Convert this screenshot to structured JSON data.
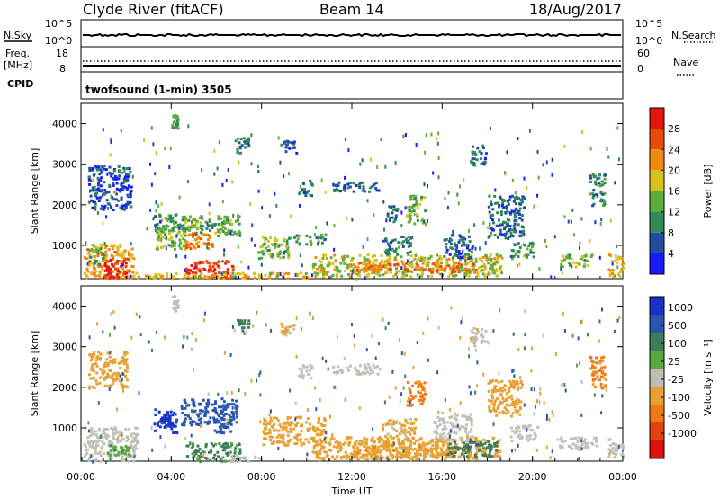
{
  "header": {
    "station": "Clyde River (fitACF)",
    "beam": "Beam 14",
    "date": "18/Aug/2017"
  },
  "top_panels": {
    "nsky_label": "N.Sky",
    "nsky_ticks": [
      "10^5",
      "10^0"
    ],
    "nsearch_label": "N.Search",
    "nsearch_ticks": [
      "10^5",
      "10^0"
    ],
    "freq_label": "Freq.",
    "freq_unit": "[MHz]",
    "freq_ticks": [
      "18",
      "8"
    ],
    "nave_label": "Nave",
    "nave_ticks": [
      "60",
      "0"
    ],
    "cpid_label": "CPID",
    "cpid_value": "twofsound (1-min) 3505"
  },
  "colors": {
    "power": [
      "#1a1aff",
      "#1f4fa0",
      "#2f8a55",
      "#5fae3c",
      "#d8c21a",
      "#ef8b10",
      "#e84a0c",
      "#e8150e"
    ],
    "velocity": [
      "#1834c8",
      "#2a56b0",
      "#3d7e58",
      "#5aa840",
      "#bdbdb5",
      "#e8a030",
      "#ef7a12",
      "#e04210",
      "#e01010"
    ],
    "ground_scatter": "#c0c0b8"
  },
  "chart_data": [
    {
      "type": "heatmap",
      "title": "Power",
      "xlabel": "",
      "ylabel": "Slant Range [km]",
      "x_ticks": [
        "00:00",
        "04:00",
        "08:00",
        "12:00",
        "16:00",
        "20:00",
        "00:00"
      ],
      "xlim_hours": [
        0,
        24
      ],
      "y_ticks": [
        "1000",
        "2000",
        "3000",
        "4000"
      ],
      "ylim_km": [
        180,
        4500
      ],
      "colorbar_label": "Power [dB]",
      "colorbar_ticks": [
        "4",
        "8",
        "12",
        "16",
        "20",
        "24",
        "28"
      ],
      "colorbar_range": [
        0,
        30
      ],
      "regions": [
        {
          "t0": 0.1,
          "t1": 2.3,
          "r0": 200,
          "r1": 1050,
          "v": 20
        },
        {
          "t0": 1.0,
          "t1": 2.0,
          "r0": 200,
          "r1": 700,
          "v": 28
        },
        {
          "t0": 0.3,
          "t1": 1.0,
          "r0": 500,
          "r1": 950,
          "v": 13
        },
        {
          "t0": 3.2,
          "t1": 4.6,
          "r0": 1350,
          "r1": 1800,
          "v": 10
        },
        {
          "t0": 3.3,
          "t1": 4.6,
          "r0": 900,
          "r1": 1500,
          "v": 14
        },
        {
          "t0": 4.4,
          "t1": 7.0,
          "r0": 1250,
          "r1": 1750,
          "v": 12
        },
        {
          "t0": 4.6,
          "t1": 5.8,
          "r0": 950,
          "r1": 1350,
          "v": 22
        },
        {
          "t0": 4.6,
          "t1": 6.8,
          "r0": 200,
          "r1": 650,
          "v": 26
        },
        {
          "t0": 2.3,
          "t1": 10.0,
          "r0": 200,
          "r1": 350,
          "v": 18
        },
        {
          "t0": 7.8,
          "t1": 9.2,
          "r0": 700,
          "r1": 1250,
          "v": 14
        },
        {
          "t0": 9.4,
          "t1": 10.8,
          "r0": 1050,
          "r1": 1300,
          "v": 10
        },
        {
          "t0": 9.6,
          "t1": 10.2,
          "r0": 2250,
          "r1": 2650,
          "v": 6
        },
        {
          "t0": 11.1,
          "t1": 13.2,
          "r0": 2350,
          "r1": 2600,
          "v": 6
        },
        {
          "t0": 10.2,
          "t1": 18.6,
          "r0": 250,
          "r1": 800,
          "v": 16
        },
        {
          "t0": 12.0,
          "t1": 17.5,
          "r0": 350,
          "r1": 600,
          "v": 22
        },
        {
          "t0": 13.3,
          "t1": 14.6,
          "r0": 800,
          "r1": 1250,
          "v": 9
        },
        {
          "t0": 14.4,
          "t1": 15.2,
          "r0": 1550,
          "r1": 2250,
          "v": 13
        },
        {
          "t0": 13.5,
          "t1": 14.0,
          "r0": 1600,
          "r1": 2000,
          "v": 8
        },
        {
          "t0": 16.0,
          "t1": 17.3,
          "r0": 700,
          "r1": 1300,
          "v": 7
        },
        {
          "t0": 18.0,
          "t1": 19.6,
          "r0": 1200,
          "r1": 2250,
          "v": 7
        },
        {
          "t0": 19.0,
          "t1": 20.0,
          "r0": 700,
          "r1": 1100,
          "v": 10
        },
        {
          "t0": 21.2,
          "t1": 22.6,
          "r0": 500,
          "r1": 800,
          "v": 14
        },
        {
          "t0": 22.5,
          "t1": 23.2,
          "r0": 2000,
          "r1": 2800,
          "v": 9
        },
        {
          "t0": 23.3,
          "t1": 24.0,
          "r0": 250,
          "r1": 800,
          "v": 18
        },
        {
          "t0": 6.8,
          "t1": 7.4,
          "r0": 3300,
          "r1": 3700,
          "v": 8
        },
        {
          "t0": 8.8,
          "t1": 9.5,
          "r0": 3300,
          "r1": 3600,
          "v": 6
        },
        {
          "t0": 0.3,
          "t1": 2.2,
          "r0": 1900,
          "r1": 3000,
          "v": 5
        },
        {
          "t0": 4.0,
          "t1": 4.3,
          "r0": 3900,
          "r1": 4300,
          "v": 12
        },
        {
          "t0": 17.2,
          "t1": 17.9,
          "r0": 3000,
          "r1": 3500,
          "v": 7
        }
      ]
    },
    {
      "type": "heatmap",
      "title": "Velocity",
      "xlabel": "Time UT",
      "ylabel": "Slant Range [km]",
      "x_ticks": [
        "00:00",
        "04:00",
        "08:00",
        "12:00",
        "16:00",
        "20:00",
        "00:00"
      ],
      "xlim_hours": [
        0,
        24
      ],
      "y_ticks": [
        "1000",
        "2000",
        "3000",
        "4000"
      ],
      "ylim_km": [
        180,
        4500
      ],
      "colorbar_label": "Velocity [m s⁻¹]",
      "colorbar_ticks": [
        "1000",
        "500",
        "100",
        "25",
        "-25",
        "-100",
        "-500",
        "-1000"
      ],
      "colorbar_range": [
        -1000,
        1000
      ],
      "regions": [
        {
          "t0": 0.1,
          "t1": 2.5,
          "r0": 200,
          "r1": 1050,
          "v": 0,
          "g": true
        },
        {
          "t0": 1.0,
          "t1": 2.2,
          "r0": 300,
          "r1": 600,
          "v": 20
        },
        {
          "t0": 3.2,
          "t1": 4.2,
          "r0": 900,
          "r1": 1500,
          "v": 600
        },
        {
          "t0": 3.5,
          "t1": 4.0,
          "r0": 1050,
          "r1": 1350,
          "v": 1000
        },
        {
          "t0": 4.4,
          "t1": 6.9,
          "r0": 1100,
          "r1": 1750,
          "v": 150
        },
        {
          "t0": 5.8,
          "t1": 6.6,
          "r0": 900,
          "r1": 1300,
          "v": 400
        },
        {
          "t0": 4.6,
          "t1": 7.0,
          "r0": 200,
          "r1": 650,
          "v": 30
        },
        {
          "t0": 6.5,
          "t1": 8.0,
          "r0": 200,
          "r1": 350,
          "v": 0,
          "g": true
        },
        {
          "t0": 8.0,
          "t1": 10.8,
          "r0": 600,
          "r1": 1300,
          "v": -200
        },
        {
          "t0": 9.6,
          "t1": 10.2,
          "r0": 2250,
          "r1": 2600,
          "v": 0,
          "g": true
        },
        {
          "t0": 11.1,
          "t1": 13.2,
          "r0": 2350,
          "r1": 2600,
          "v": 0,
          "g": true
        },
        {
          "t0": 10.2,
          "t1": 18.6,
          "r0": 250,
          "r1": 800,
          "v": -150
        },
        {
          "t0": 12.0,
          "t1": 16.5,
          "r0": 300,
          "r1": 650,
          "v": -400
        },
        {
          "t0": 14.4,
          "t1": 15.2,
          "r0": 1550,
          "r1": 2200,
          "v": -600
        },
        {
          "t0": 13.3,
          "t1": 14.8,
          "r0": 800,
          "r1": 1250,
          "v": -120
        },
        {
          "t0": 15.6,
          "t1": 17.3,
          "r0": 700,
          "r1": 1400,
          "v": 0,
          "g": true
        },
        {
          "t0": 16.2,
          "t1": 18.5,
          "r0": 300,
          "r1": 700,
          "v": 80
        },
        {
          "t0": 18.0,
          "t1": 19.5,
          "r0": 1300,
          "r1": 2200,
          "v": -300
        },
        {
          "t0": 19.0,
          "t1": 20.2,
          "r0": 700,
          "r1": 1100,
          "v": 0,
          "g": true
        },
        {
          "t0": 21.0,
          "t1": 22.8,
          "r0": 500,
          "r1": 800,
          "v": 0,
          "g": true
        },
        {
          "t0": 22.5,
          "t1": 23.2,
          "r0": 2000,
          "r1": 2800,
          "v": -600
        },
        {
          "t0": 23.3,
          "t1": 24.0,
          "r0": 250,
          "r1": 800,
          "v": 0,
          "g": true
        },
        {
          "t0": 6.8,
          "t1": 7.4,
          "r0": 3300,
          "r1": 3700,
          "v": 60
        },
        {
          "t0": 8.8,
          "t1": 9.4,
          "r0": 3300,
          "r1": 3600,
          "v": -120
        },
        {
          "t0": 0.3,
          "t1": 2.0,
          "r0": 2000,
          "r1": 2900,
          "v": -200
        },
        {
          "t0": 4.0,
          "t1": 4.3,
          "r0": 3900,
          "r1": 4300,
          "v": 0,
          "g": true
        },
        {
          "t0": 17.2,
          "t1": 17.9,
          "r0": 3000,
          "r1": 3500,
          "v": -80
        }
      ]
    }
  ]
}
